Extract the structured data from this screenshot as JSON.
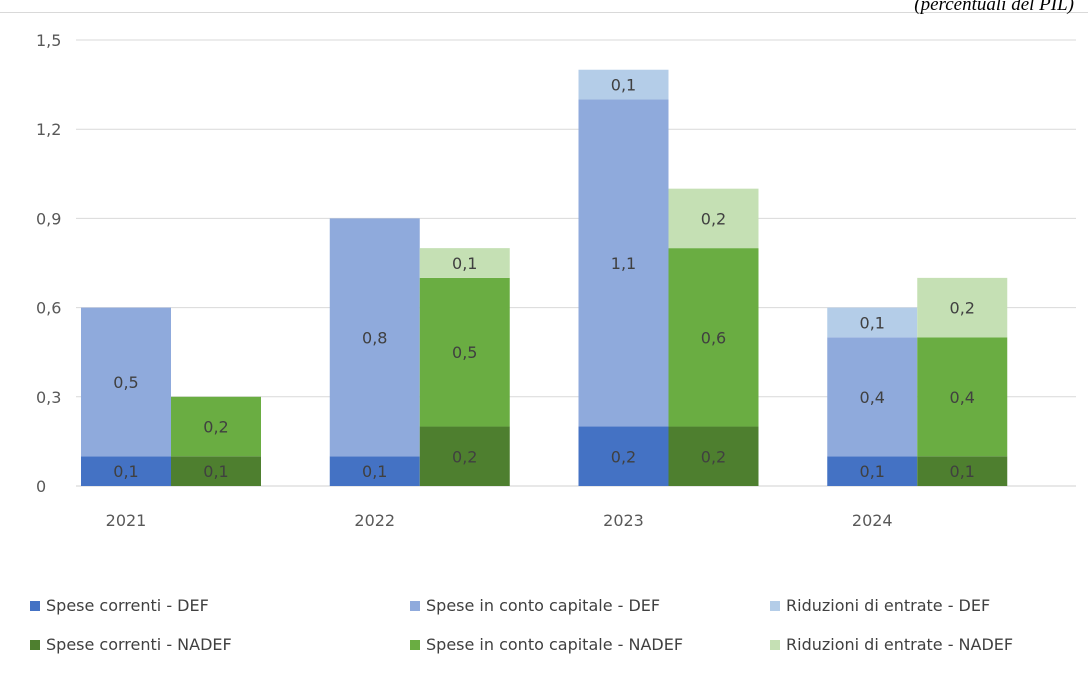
{
  "unit_note": "(percentuali del PIL)",
  "colors": {
    "Spese correnti - DEF": "#4472c4",
    "Spese in conto capitale - DEF": "#8faadc",
    "Riduzioni di entrate - DEF": "#b4cde8",
    "Spese correnti - NADEF": "#4e7f2f",
    "Spese in conto capitale - NADEF": "#6aad42",
    "Riduzioni di entrate - NADEF": "#c5e0b4"
  },
  "chart_data": {
    "type": "bar",
    "stacked": true,
    "grouped": true,
    "categories": [
      "2021",
      "2022",
      "2023",
      "2024"
    ],
    "ylim": [
      0,
      1.5
    ],
    "yticks": [
      "0",
      "0,3",
      "0,6",
      "0,9",
      "1,2",
      "1,5"
    ],
    "ytick_values": [
      0,
      0.3,
      0.6,
      0.9,
      1.2,
      1.5
    ],
    "grid": true,
    "legend_position": "bottom",
    "groups": [
      {
        "stack": "DEF",
        "series": [
          {
            "name": "Spese correnti - DEF",
            "values": [
              0.1,
              0.1,
              0.2,
              0.1
            ],
            "labels": [
              "0,1",
              "0,1",
              "0,2",
              "0,1"
            ]
          },
          {
            "name": "Spese in conto capitale - DEF",
            "values": [
              0.5,
              0.8,
              1.1,
              0.4
            ],
            "labels": [
              "0,5",
              "0,8",
              "1,1",
              "0,4"
            ]
          },
          {
            "name": "Riduzioni di entrate - DEF",
            "values": [
              0,
              0,
              0.1,
              0.1
            ],
            "labels": [
              "",
              "",
              "0,1",
              "0,1"
            ]
          }
        ]
      },
      {
        "stack": "NADEF",
        "series": [
          {
            "name": "Spese correnti - NADEF",
            "values": [
              0.1,
              0.2,
              0.2,
              0.1
            ],
            "labels": [
              "0,1",
              "0,2",
              "0,2",
              "0,1"
            ]
          },
          {
            "name": "Spese in conto capitale - NADEF",
            "values": [
              0.2,
              0.5,
              0.6,
              0.4
            ],
            "labels": [
              "0,2",
              "0,5",
              "0,6",
              "0,4"
            ]
          },
          {
            "name": "Riduzioni di entrate - NADEF",
            "values": [
              0,
              0.1,
              0.2,
              0.2
            ],
            "labels": [
              "",
              "0,1",
              "0,2",
              "0,2"
            ]
          }
        ]
      }
    ],
    "legend": [
      "Spese correnti - DEF",
      "Spese in conto capitale - DEF",
      "Riduzioni di entrate - DEF",
      "Spese correnti - NADEF",
      "Spese in conto capitale - NADEF",
      "Riduzioni di entrate - NADEF"
    ]
  }
}
